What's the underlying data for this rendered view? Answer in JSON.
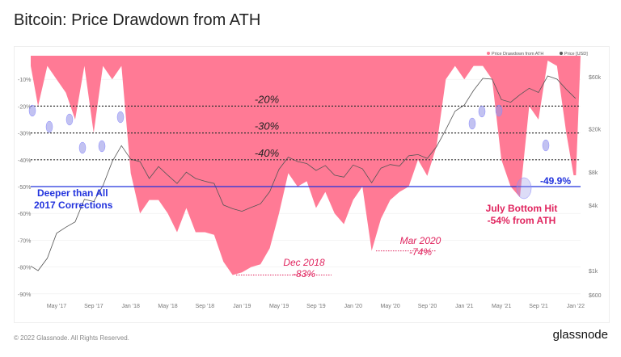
{
  "title": "Bitcoin: Price Drawdown from ATH",
  "footer": "© 2022 Glassnode. All Rights Reserved.",
  "logo": "glassnode",
  "colors": {
    "drawdown": "#ff7a95",
    "price": "#555555",
    "highlight_line": "#2233dd",
    "annotation": "#e0245e",
    "marker": "#9a9ae8"
  },
  "chart_data": {
    "type": "area",
    "legend": {
      "placement": "top-right",
      "entries": [
        "Price Drawdown from ATH",
        "Price [USD]"
      ]
    },
    "x_ticks": [
      "May '17",
      "Sep '17",
      "Jan '18",
      "May '18",
      "Sep '18",
      "Jan '19",
      "May '19",
      "Sep '19",
      "Jan '20",
      "May '20",
      "Sep '20",
      "Jan '21",
      "May '21",
      "Sep '21",
      "Jan '22"
    ],
    "y_left_ticks": [
      "-10%",
      "-20%",
      "-30%",
      "-40%",
      "-50%",
      "-60%",
      "-70%",
      "-80%",
      "-90%"
    ],
    "y_left_range": [
      -90,
      0
    ],
    "y_right_ticks": [
      {
        "label": "$60k",
        "value": 60000
      },
      {
        "label": "$20k",
        "value": 20000
      },
      {
        "label": "$8k",
        "value": 8000
      },
      {
        "label": "$4k",
        "value": 4000
      },
      {
        "label": "$1k",
        "value": 1000
      },
      {
        "label": "$600",
        "value": 600
      }
    ],
    "y_right_scale": "log",
    "months": [
      "2017-02",
      "2017-03",
      "2017-04",
      "2017-05",
      "2017-06",
      "2017-07",
      "2017-08",
      "2017-09",
      "2017-10",
      "2017-11",
      "2017-12",
      "2018-01",
      "2018-02",
      "2018-03",
      "2018-04",
      "2018-05",
      "2018-06",
      "2018-07",
      "2018-08",
      "2018-09",
      "2018-10",
      "2018-11",
      "2018-12",
      "2019-01",
      "2019-02",
      "2019-03",
      "2019-04",
      "2019-05",
      "2019-06",
      "2019-07",
      "2019-08",
      "2019-09",
      "2019-10",
      "2019-11",
      "2019-12",
      "2020-01",
      "2020-02",
      "2020-03",
      "2020-04",
      "2020-05",
      "2020-06",
      "2020-07",
      "2020-08",
      "2020-09",
      "2020-10",
      "2020-11",
      "2020-12",
      "2021-01",
      "2021-02",
      "2021-03",
      "2021-04",
      "2021-05",
      "2021-06",
      "2021-07",
      "2021-08",
      "2021-09",
      "2021-10",
      "2021-11",
      "2021-12",
      "2022-01"
    ],
    "series": [
      {
        "name": "Price Drawdown from ATH",
        "values": [
          -5,
          -20,
          -5,
          -10,
          -15,
          -25,
          -5,
          -30,
          -5,
          -10,
          -5,
          -45,
          -60,
          -55,
          -55,
          -60,
          -67,
          -58,
          -67,
          -67,
          -68,
          -78,
          -83,
          -82,
          -80,
          -79,
          -73,
          -60,
          -45,
          -50,
          -48,
          -58,
          -52,
          -60,
          -64,
          -55,
          -50,
          -74,
          -62,
          -55,
          -52,
          -50,
          -40,
          -46,
          -35,
          -10,
          -5,
          -10,
          -5,
          -5,
          -10,
          -40,
          -50,
          -54,
          -20,
          -25,
          -3,
          -5,
          -30,
          -49.9
        ]
      },
      {
        "name": "Price [USD]",
        "values": [
          1100,
          1000,
          1300,
          2200,
          2500,
          2800,
          4500,
          4300,
          6000,
          10000,
          14000,
          10500,
          10000,
          7000,
          9000,
          7500,
          6300,
          8000,
          7000,
          6600,
          6300,
          4000,
          3700,
          3500,
          3800,
          4100,
          5300,
          8500,
          11000,
          10000,
          9600,
          8300,
          9200,
          7500,
          7200,
          9300,
          8600,
          6400,
          8700,
          9400,
          9100,
          11300,
          11600,
          10700,
          13700,
          19600,
          29000,
          33000,
          45000,
          58000,
          57000,
          37000,
          35000,
          41000,
          47000,
          43000,
          61000,
          57000,
          46000,
          38000
        ]
      }
    ],
    "reference_lines": [
      {
        "value": -20,
        "label": "-20%"
      },
      {
        "value": -30,
        "label": "-30%"
      },
      {
        "value": -40,
        "label": "-40%"
      }
    ],
    "highlight_line": {
      "value": -50,
      "label": "-49.9%",
      "note": [
        "Deeper than All",
        "2017 Corrections"
      ]
    },
    "annotations": [
      {
        "lines": [
          "July Bottom Hit",
          "-54% from ATH"
        ]
      },
      {
        "lines": [
          "Dec 2018",
          "-83%"
        ],
        "value": -83
      },
      {
        "lines": [
          "Mar 2020",
          "-74%"
        ],
        "value": -74
      }
    ]
  }
}
